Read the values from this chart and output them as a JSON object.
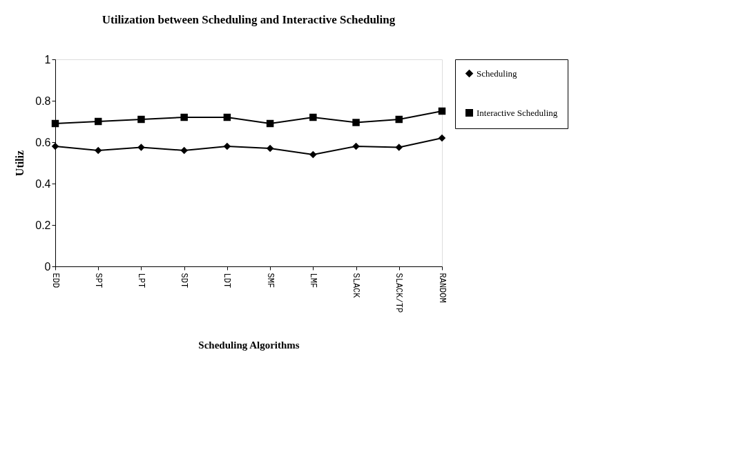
{
  "chart_data": {
    "type": "line",
    "title": "Utilization between Scheduling and Interactive Scheduling",
    "xlabel": "Scheduling Algorithms",
    "ylabel": "Utiliz",
    "categories": [
      "EDD",
      "SPT",
      "LPT",
      "SDT",
      "LDT",
      "SMF",
      "LMF",
      "SLACK",
      "SLACK/TP",
      "RANDOM"
    ],
    "series": [
      {
        "name": "Scheduling",
        "color": "#000000",
        "marker": "diamond",
        "values": [
          0.58,
          0.56,
          0.575,
          0.56,
          0.58,
          0.57,
          0.54,
          0.58,
          0.575,
          0.62
        ]
      },
      {
        "name": "Interactive Scheduling",
        "color": "#000000",
        "marker": "square",
        "values": [
          0.69,
          0.7,
          0.71,
          0.72,
          0.72,
          0.69,
          0.72,
          0.695,
          0.71,
          0.75
        ]
      }
    ],
    "ylim": [
      0,
      1
    ],
    "yticks": [
      0,
      0.2,
      0.4,
      0.6,
      0.8,
      1
    ],
    "grid": false,
    "legend": "right",
    "line_style": "solid"
  }
}
